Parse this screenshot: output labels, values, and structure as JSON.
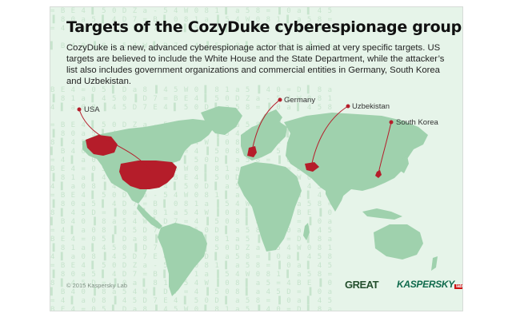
{
  "title": "Targets of the CozyDuke cyberespionage group",
  "description": "CozyDuke is a new, advanced cyberespionage actor that is aimed at very specific targets. US targets are believed to include the White House and the State Department, while the attacker’s list also includes government organizations and commercial entities in Germany, South Korea and Uzbekistan.",
  "targets": [
    {
      "name": "USA"
    },
    {
      "name": "Germany"
    },
    {
      "name": "Uzbekistan"
    },
    {
      "name": "South Korea"
    }
  ],
  "copyright": "© 2015 Kaspersky Lab",
  "logos": {
    "great": "GREAT",
    "kaspersky": "KASPERSKY",
    "kaspersky_lab": "lab"
  },
  "colors": {
    "background": "#e6f4e9",
    "land": "#9fd1ad",
    "target": "#b51d2a",
    "code_text": "#c7e4cd"
  }
}
